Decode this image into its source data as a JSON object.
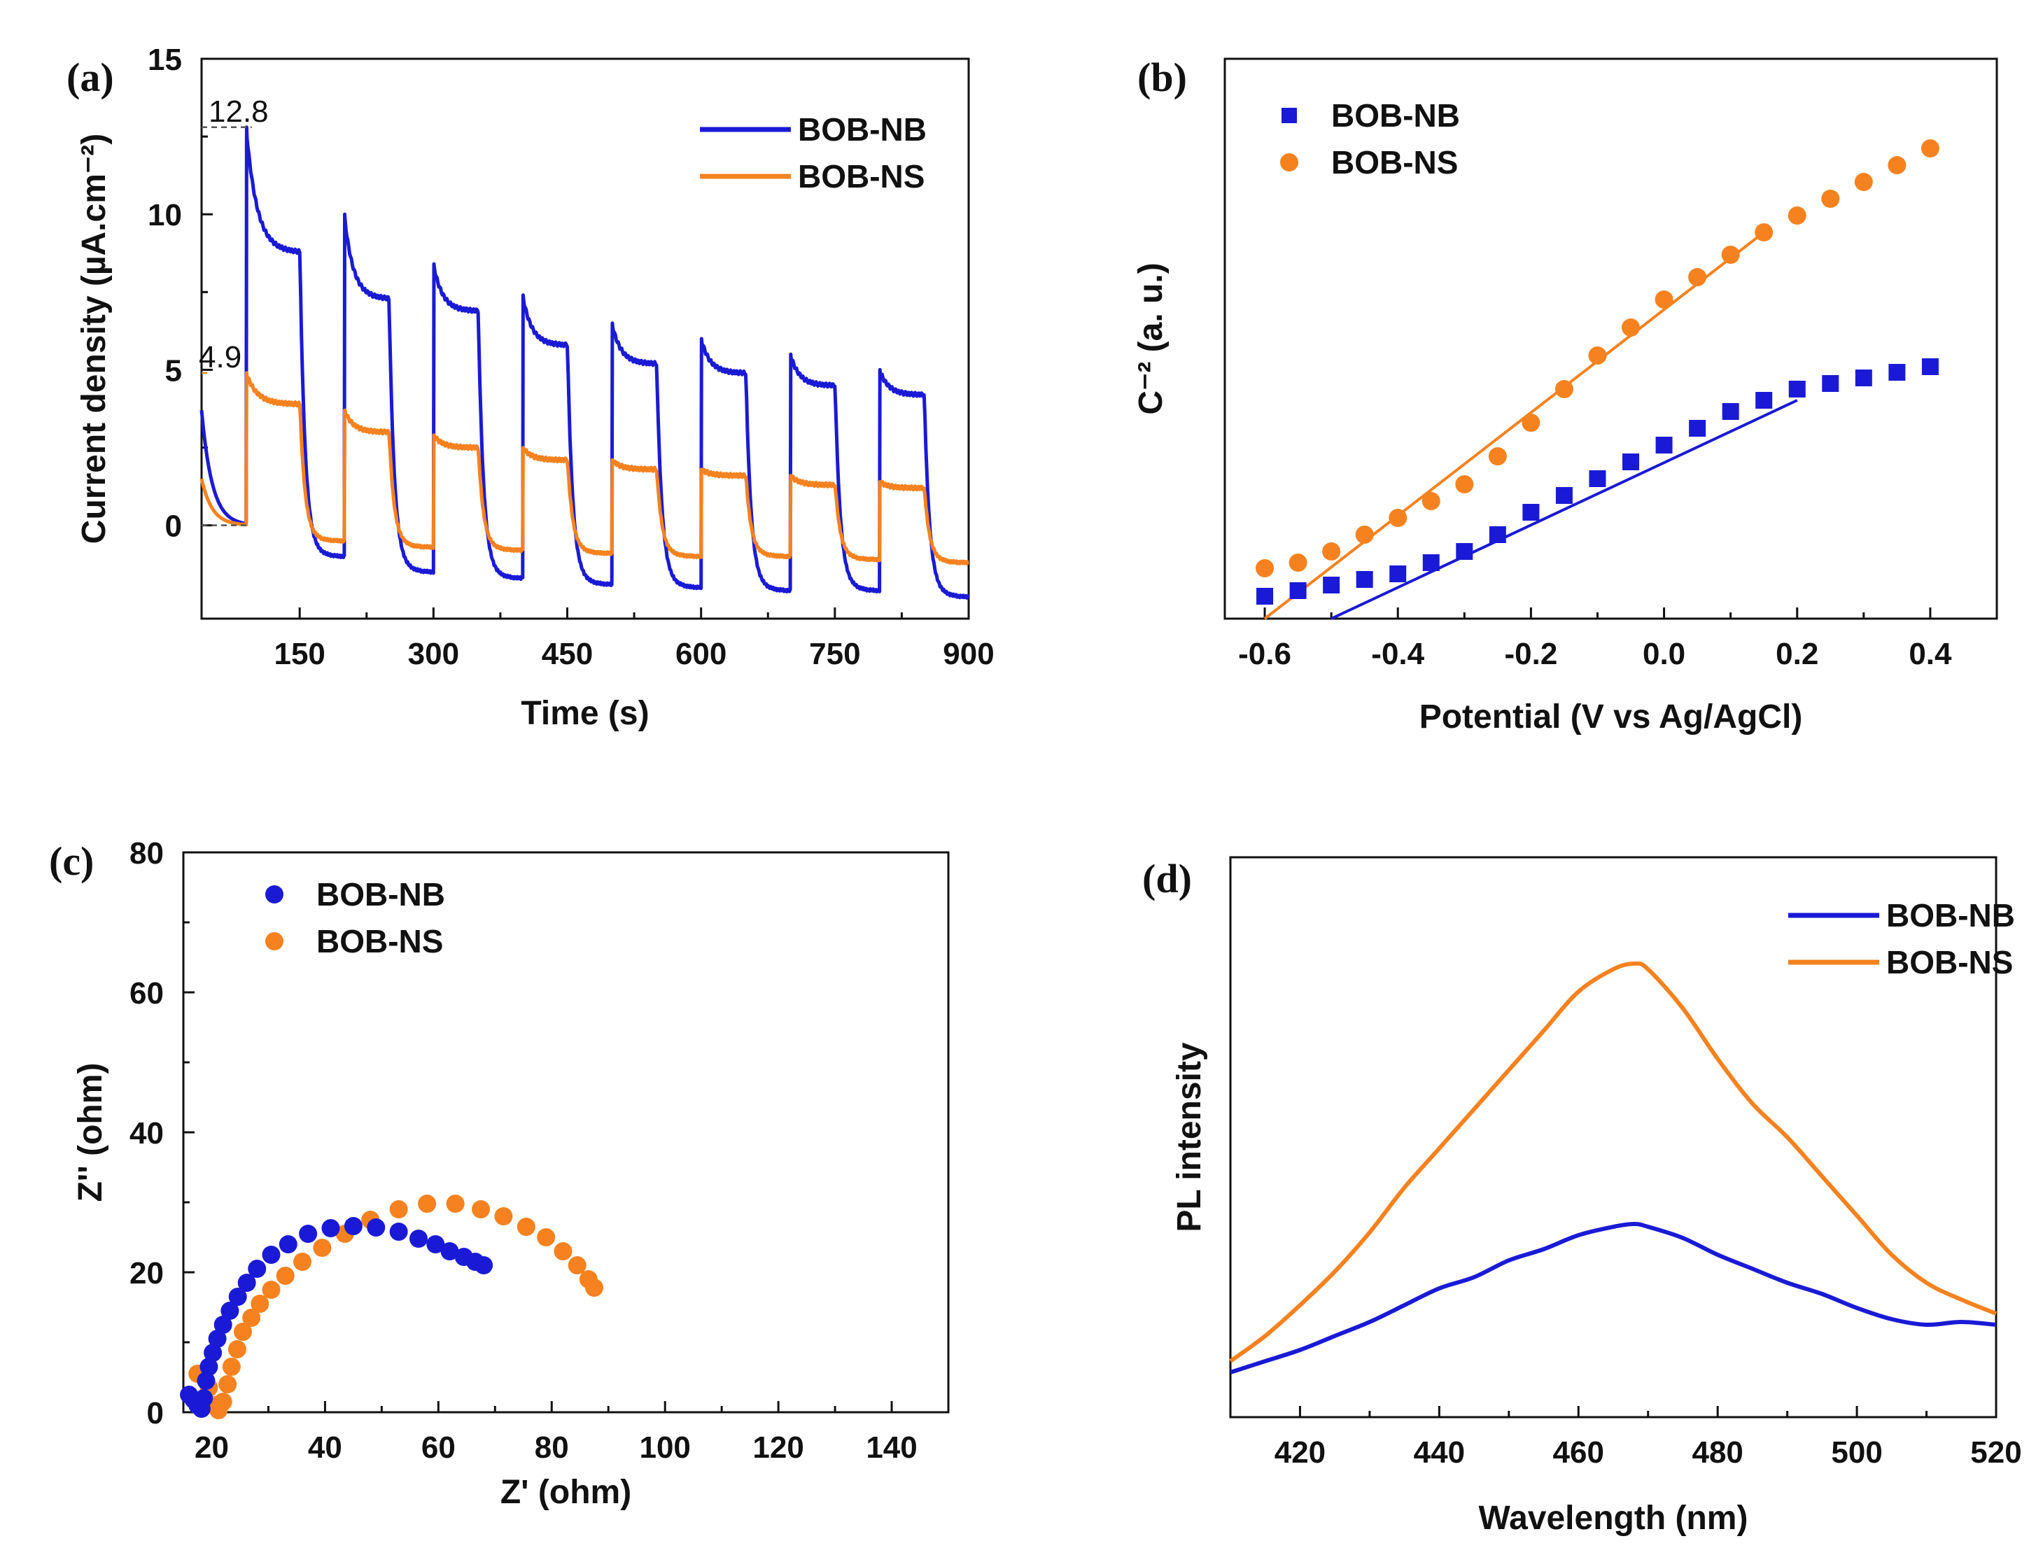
{
  "colors": {
    "nb": "#1a1ad6",
    "ns": "#f5821f",
    "axis": "#111111"
  },
  "chart_data": [
    {
      "id": "a",
      "panel_label": "(a)",
      "type": "line",
      "xlabel": "Time (s)",
      "ylabel": "Current density (µA.cm⁻²)",
      "xlim": [
        40,
        900
      ],
      "ylim": [
        -3,
        15
      ],
      "xticks": [
        150,
        300,
        450,
        600,
        750,
        900
      ],
      "yticks": [
        0,
        5,
        10,
        15
      ],
      "annotations": [
        {
          "text": "12.8",
          "x": 90,
          "y": 12.8
        },
        {
          "text": "4.9",
          "x": 40,
          "y": 4.9
        }
      ],
      "legend": [
        "BOB-NB",
        "BOB-NS"
      ],
      "on_off_cycles": [
        {
          "on": 90,
          "off": 150
        },
        {
          "on": 200,
          "off": 250
        },
        {
          "on": 300,
          "off": 350
        },
        {
          "on": 400,
          "off": 450
        },
        {
          "on": 500,
          "off": 550
        },
        {
          "on": 600,
          "off": 650
        },
        {
          "on": 700,
          "off": 750
        },
        {
          "on": 800,
          "off": 850
        }
      ],
      "series": [
        {
          "name": "BOB-NB",
          "initial": 3.7,
          "first_dark_end": 0.0,
          "peaks": [
            12.8,
            10.0,
            8.4,
            7.4,
            6.5,
            6.0,
            5.5,
            5.0
          ],
          "plateau_ends": [
            8.8,
            7.3,
            6.9,
            5.8,
            5.2,
            4.9,
            4.5,
            4.2
          ],
          "dark_mins": [
            -1.0,
            -1.5,
            -1.7,
            -1.9,
            -2.0,
            -2.1,
            -2.1,
            -2.3
          ]
        },
        {
          "name": "BOB-NS",
          "initial": 1.5,
          "first_dark_end": 0.0,
          "peaks": [
            4.9,
            3.7,
            2.9,
            2.5,
            2.1,
            1.8,
            1.6,
            1.4
          ],
          "plateau_ends": [
            3.9,
            3.0,
            2.5,
            2.1,
            1.8,
            1.6,
            1.3,
            1.2
          ],
          "dark_mins": [
            -0.5,
            -0.7,
            -0.8,
            -0.9,
            -1.0,
            -1.0,
            -1.1,
            -1.2
          ]
        }
      ]
    },
    {
      "id": "b",
      "panel_label": "(b)",
      "type": "scatter",
      "xlabel": "Potential (V vs Ag/AgCl)",
      "ylabel": "C⁻² (a. u.)",
      "xlim": [
        -0.66,
        0.5
      ],
      "ylim": [
        0,
        1
      ],
      "xticks": [
        -0.6,
        -0.4,
        -0.2,
        0.0,
        0.2,
        0.4
      ],
      "xtick_labels": [
        "-0.6",
        "-0.4",
        "-0.2",
        "0.0",
        "0.2",
        "0.4"
      ],
      "legend": [
        "BOB-NB",
        "BOB-NS"
      ],
      "series": [
        {
          "name": "BOB-NB",
          "marker": "square",
          "x": [
            -0.6,
            -0.55,
            -0.5,
            -0.45,
            -0.4,
            -0.35,
            -0.3,
            -0.25,
            -0.2,
            -0.15,
            -0.1,
            -0.05,
            0.0,
            0.05,
            0.1,
            0.15,
            0.2,
            0.25,
            0.3,
            0.35,
            0.4
          ],
          "y": [
            0.04,
            0.05,
            0.06,
            0.07,
            0.08,
            0.1,
            0.12,
            0.15,
            0.19,
            0.22,
            0.25,
            0.28,
            0.31,
            0.34,
            0.37,
            0.39,
            0.41,
            0.42,
            0.43,
            0.44,
            0.45
          ]
        },
        {
          "name": "BOB-NS",
          "marker": "circle",
          "x": [
            -0.6,
            -0.55,
            -0.5,
            -0.45,
            -0.4,
            -0.35,
            -0.3,
            -0.25,
            -0.2,
            -0.15,
            -0.1,
            -0.05,
            0.0,
            0.05,
            0.1,
            0.15,
            0.2,
            0.25,
            0.3,
            0.35,
            0.4
          ],
          "y": [
            0.09,
            0.1,
            0.12,
            0.15,
            0.18,
            0.21,
            0.24,
            0.29,
            0.35,
            0.41,
            0.47,
            0.52,
            0.57,
            0.61,
            0.65,
            0.69,
            0.72,
            0.75,
            0.78,
            0.81,
            0.84
          ]
        }
      ],
      "fit_lines": [
        {
          "name": "BOB-NB",
          "x": [
            -0.5,
            0.2
          ],
          "y": [
            0.0,
            0.39
          ]
        },
        {
          "name": "BOB-NS",
          "x": [
            -0.6,
            0.15
          ],
          "y": [
            0.0,
            0.69
          ]
        }
      ]
    },
    {
      "id": "c",
      "panel_label": "(c)",
      "type": "scatter",
      "xlabel": "Z' (ohm)",
      "ylabel": "Z'' (ohm)",
      "xlim": [
        15,
        150
      ],
      "ylim": [
        0,
        80
      ],
      "xticks": [
        20,
        40,
        60,
        80,
        100,
        120,
        140
      ],
      "yticks": [
        0,
        20,
        40,
        60,
        80
      ],
      "legend": [
        "BOB-NB",
        "BOB-NS"
      ],
      "series": [
        {
          "name": "BOB-NB",
          "marker": "circle",
          "x": [
            16,
            16.8,
            17.5,
            18.2,
            18.6,
            19,
            19.5,
            20.2,
            21,
            22,
            23.2,
            24.6,
            26.2,
            28,
            30.5,
            33.5,
            37,
            41,
            45,
            49,
            53,
            56.5,
            59.5,
            62,
            64.5,
            66.5,
            68
          ],
          "y": [
            2.5,
            1.8,
            1.0,
            0.5,
            2.0,
            4.5,
            6.5,
            8.5,
            10.5,
            12.5,
            14.5,
            16.5,
            18.5,
            20.5,
            22.5,
            24,
            25.5,
            26.3,
            26.6,
            26.4,
            25.8,
            24.8,
            24,
            23,
            22.2,
            21.5,
            21
          ]
        },
        {
          "name": "BOB-NS",
          "marker": "circle",
          "x": [
            17.5,
            18.5,
            19.5,
            20.5,
            21.2,
            22,
            22.8,
            23.5,
            24.5,
            25.5,
            27,
            28.5,
            30.5,
            33,
            36,
            39.5,
            43.5,
            48,
            53,
            58,
            63,
            67.5,
            71.5,
            75.5,
            79,
            82,
            84.5,
            86.5,
            87.5
          ],
          "y": [
            5.5,
            5.5,
            3.5,
            1.0,
            0.3,
            1.5,
            4.0,
            6.5,
            9.0,
            11.5,
            13.5,
            15.5,
            17.5,
            19.5,
            21.5,
            23.5,
            25.5,
            27.5,
            29,
            29.8,
            29.8,
            29,
            28,
            26.5,
            25,
            23,
            21,
            19,
            17.8
          ]
        }
      ]
    },
    {
      "id": "d",
      "panel_label": "(d)",
      "type": "line",
      "xlabel": "Wavelength (nm)",
      "ylabel": "PL intensity",
      "xlim": [
        410,
        520
      ],
      "ylim": [
        0,
        1
      ],
      "xticks": [
        420,
        440,
        460,
        480,
        500,
        520
      ],
      "legend": [
        "BOB-NB",
        "BOB-NS"
      ],
      "series": [
        {
          "name": "BOB-NB",
          "x": [
            410,
            415,
            420,
            425,
            430,
            435,
            440,
            445,
            450,
            455,
            460,
            465,
            468,
            470,
            475,
            480,
            485,
            490,
            495,
            500,
            505,
            510,
            515,
            520
          ],
          "y": [
            0.08,
            0.1,
            0.12,
            0.145,
            0.17,
            0.2,
            0.23,
            0.25,
            0.28,
            0.3,
            0.325,
            0.34,
            0.345,
            0.34,
            0.32,
            0.29,
            0.265,
            0.24,
            0.22,
            0.195,
            0.175,
            0.165,
            0.17,
            0.165
          ]
        },
        {
          "name": "BOB-NS",
          "x": [
            410,
            415,
            420,
            425,
            430,
            435,
            440,
            445,
            450,
            455,
            460,
            465,
            468,
            470,
            475,
            480,
            485,
            490,
            495,
            500,
            505,
            510,
            515,
            520
          ],
          "y": [
            0.1,
            0.145,
            0.2,
            0.26,
            0.33,
            0.41,
            0.48,
            0.55,
            0.62,
            0.69,
            0.76,
            0.8,
            0.81,
            0.8,
            0.73,
            0.64,
            0.56,
            0.5,
            0.43,
            0.36,
            0.29,
            0.24,
            0.21,
            0.185
          ]
        }
      ]
    }
  ]
}
